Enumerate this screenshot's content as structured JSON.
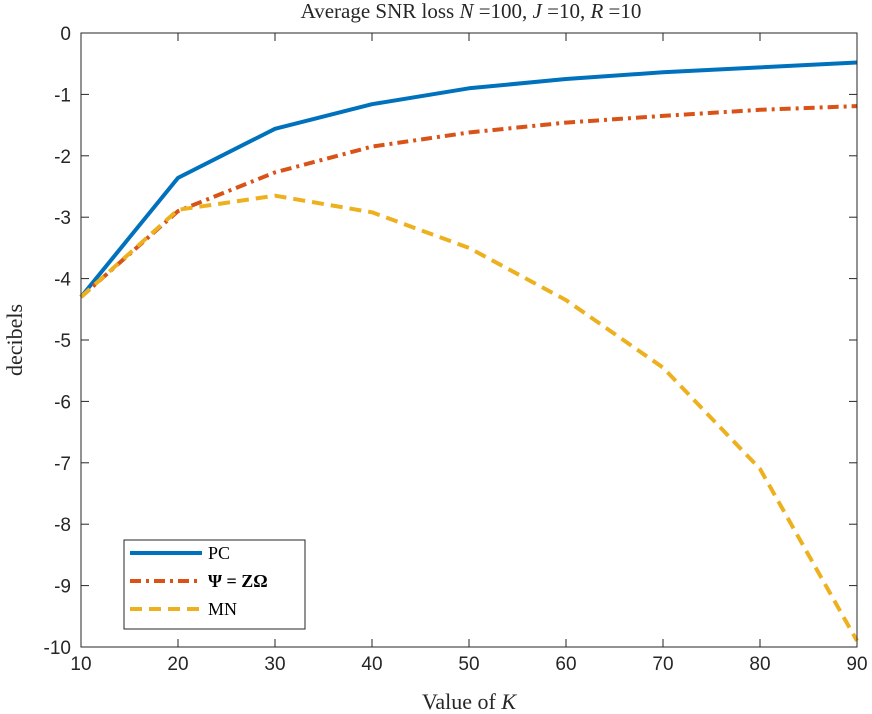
{
  "chart_data": {
    "type": "line",
    "title": "Average SNR loss N =100, J =10, R =10",
    "title_parts": {
      "prefix": "Average SNR loss ",
      "n_symbol": "N",
      "n_value": " =100, ",
      "j_symbol": "J",
      "j_value": " =10, ",
      "r_symbol": "R",
      "r_value": " =10"
    },
    "xlabel": "Value of K",
    "xlabel_parts": {
      "text": "Value of ",
      "symbol": "K"
    },
    "ylabel": "decibels",
    "xlim": [
      10,
      90
    ],
    "ylim": [
      -10,
      0
    ],
    "x_ticks": [
      10,
      20,
      30,
      40,
      50,
      60,
      70,
      80,
      90
    ],
    "x_tick_labels": [
      "10",
      "20",
      "30",
      "40",
      "50",
      "60",
      "70",
      "80",
      "90"
    ],
    "y_ticks": [
      0,
      -1,
      -2,
      -3,
      -4,
      -5,
      -6,
      -7,
      -8,
      -9,
      -10
    ],
    "y_tick_labels": [
      "0",
      "-1",
      "-2",
      "-3",
      "-4",
      "-5",
      "-6",
      "-7",
      "-8",
      "-9",
      "-10"
    ],
    "grid": false,
    "legend_position": "bottom-left",
    "x": [
      10,
      20,
      30,
      40,
      50,
      60,
      70,
      80,
      90
    ],
    "series": [
      {
        "name": "PC",
        "color": "#0072BD",
        "style": "solid",
        "values": [
          -4.3,
          -2.36,
          -1.56,
          -1.16,
          -0.9,
          -0.75,
          -0.64,
          -0.56,
          -0.48
        ]
      },
      {
        "name": "Ψ = ZΩ",
        "color": "#D95319",
        "style": "dashdot",
        "values": [
          -4.3,
          -2.9,
          -2.27,
          -1.85,
          -1.62,
          -1.46,
          -1.35,
          -1.25,
          -1.19
        ]
      },
      {
        "name": "MN",
        "color": "#EDB120",
        "style": "dashed",
        "values": [
          -4.3,
          -2.88,
          -2.65,
          -2.92,
          -3.5,
          -4.35,
          -5.45,
          -7.1,
          -9.9
        ]
      }
    ]
  }
}
